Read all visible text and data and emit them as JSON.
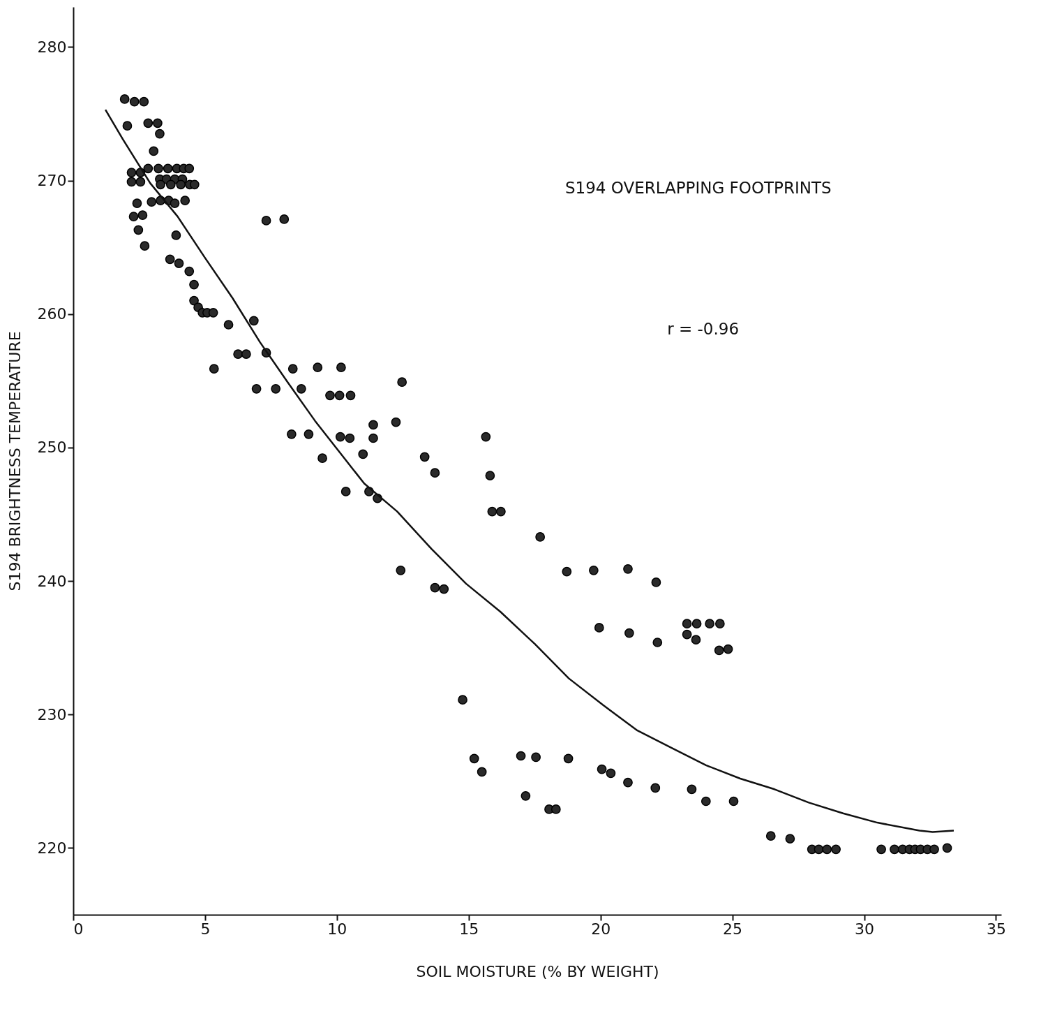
{
  "chart_data": {
    "type": "scatter",
    "xlabel": "SOIL MOISTURE (% BY WEIGHT)",
    "ylabel": "S194 BRIGHTNESS TEMPERATURE",
    "annotations": [
      "S194  OVERLAPPING FOOTPRINTS",
      "r = -0.96"
    ],
    "xlim": [
      0,
      35.2
    ],
    "ylim": [
      215,
      283
    ],
    "xticks": [
      0,
      5,
      10,
      15,
      20,
      25,
      30,
      35
    ],
    "yticks": [
      220,
      230,
      240,
      250,
      260,
      270,
      280
    ],
    "grid": false,
    "marker": "circle",
    "series": [
      {
        "color": "#2a2a2a",
        "x": [
          1.95,
          2.05,
          2.32,
          2.68,
          2.84,
          3.2,
          3.28,
          3.05,
          2.21,
          2.21,
          2.55,
          2.55,
          2.84,
          3.23,
          3.59,
          3.93,
          4.19,
          4.4,
          3.28,
          3.54,
          3.85,
          4.14,
          3.31,
          3.7,
          4.08,
          4.42,
          4.6,
          2.29,
          2.63,
          2.42,
          2.97,
          3.31,
          3.62,
          3.85,
          4.24,
          2.47,
          2.71,
          3.9,
          3.67,
          4.01,
          4.4,
          4.58,
          4.58,
          4.74,
          4.9,
          5.08,
          5.31,
          5.34,
          5.89,
          6.25,
          6.56,
          6.85,
          7.32,
          6.95,
          7.68,
          7.32,
          8.0,
          8.33,
          8.28,
          8.65,
          8.93,
          9.27,
          9.45,
          9.74,
          10.1,
          10.16,
          10.52,
          10.13,
          10.49,
          10.34,
          10.99,
          11.22,
          11.38,
          11.38,
          11.54,
          12.24,
          12.47,
          12.42,
          13.33,
          13.72,
          13.72,
          14.06,
          14.77,
          15.21,
          15.5,
          15.65,
          15.81,
          15.89,
          16.22,
          16.98,
          17.55,
          17.16,
          17.71,
          18.05,
          18.31,
          18.72,
          18.78,
          19.74,
          19.95,
          20.05,
          20.39,
          21.04,
          21.09,
          21.04,
          22.11,
          22.16,
          22.08,
          23.28,
          23.65,
          23.28,
          23.62,
          24.14,
          24.53,
          24.5,
          24.84,
          23.46,
          24.0,
          25.05,
          26.46,
          27.19,
          28.02,
          28.28,
          28.59,
          28.93,
          30.65,
          31.15,
          31.46,
          31.72,
          31.93,
          32.14,
          32.4,
          32.66,
          33.15
        ],
        "values": [
          276.1,
          274.1,
          275.9,
          275.9,
          274.3,
          274.3,
          273.5,
          272.2,
          270.6,
          269.9,
          270.6,
          269.9,
          270.9,
          270.9,
          270.9,
          270.9,
          270.9,
          270.9,
          270.1,
          270.1,
          270.1,
          270.1,
          269.7,
          269.7,
          269.7,
          269.7,
          269.7,
          267.3,
          267.4,
          268.3,
          268.4,
          268.5,
          268.5,
          268.3,
          268.5,
          266.3,
          265.1,
          265.9,
          264.1,
          263.8,
          263.2,
          262.2,
          261.0,
          260.5,
          260.1,
          260.1,
          260.1,
          255.9,
          259.2,
          257.0,
          257.0,
          259.5,
          257.1,
          254.4,
          254.4,
          267.0,
          267.1,
          255.9,
          251.0,
          254.4,
          251.0,
          256.0,
          249.2,
          253.9,
          253.9,
          256.0,
          253.9,
          250.8,
          250.7,
          246.7,
          249.5,
          246.7,
          251.7,
          250.7,
          246.2,
          251.9,
          254.9,
          240.8,
          249.3,
          248.1,
          239.5,
          239.4,
          231.1,
          226.7,
          225.7,
          250.8,
          247.9,
          245.2,
          245.2,
          226.9,
          226.8,
          223.9,
          243.3,
          222.9,
          222.9,
          240.7,
          226.7,
          240.8,
          236.5,
          225.9,
          225.6,
          240.9,
          236.1,
          224.9,
          239.9,
          235.4,
          224.5,
          236.8,
          236.8,
          236.0,
          235.6,
          236.8,
          236.8,
          234.8,
          234.9,
          224.4,
          223.5,
          223.5,
          220.9,
          220.7,
          219.9,
          219.9,
          219.9,
          219.9,
          219.9,
          219.9,
          219.9,
          219.9,
          219.9,
          219.9,
          219.9,
          219.9,
          220.0
        ]
      },
      {
        "type": "line",
        "color": "#111111",
        "marker": "none",
        "x": [
          1.22,
          1.88,
          2.92,
          3.96,
          5.0,
          6.04,
          7.08,
          8.13,
          9.17,
          10.2,
          11.04,
          12.29,
          13.59,
          14.9,
          16.2,
          17.5,
          18.8,
          20.1,
          21.4,
          22.7,
          24.0,
          25.3,
          26.6,
          27.9,
          29.2,
          30.5,
          32.1,
          32.6,
          33.4
        ],
        "values": [
          275.3,
          273.1,
          269.8,
          267.3,
          264.2,
          261.2,
          257.9,
          254.9,
          252.0,
          249.4,
          247.3,
          245.2,
          242.4,
          239.8,
          237.7,
          235.3,
          232.7,
          230.7,
          228.8,
          227.5,
          226.2,
          225.2,
          224.4,
          223.4,
          222.6,
          221.9,
          221.3,
          221.2,
          221.3
        ]
      }
    ]
  }
}
